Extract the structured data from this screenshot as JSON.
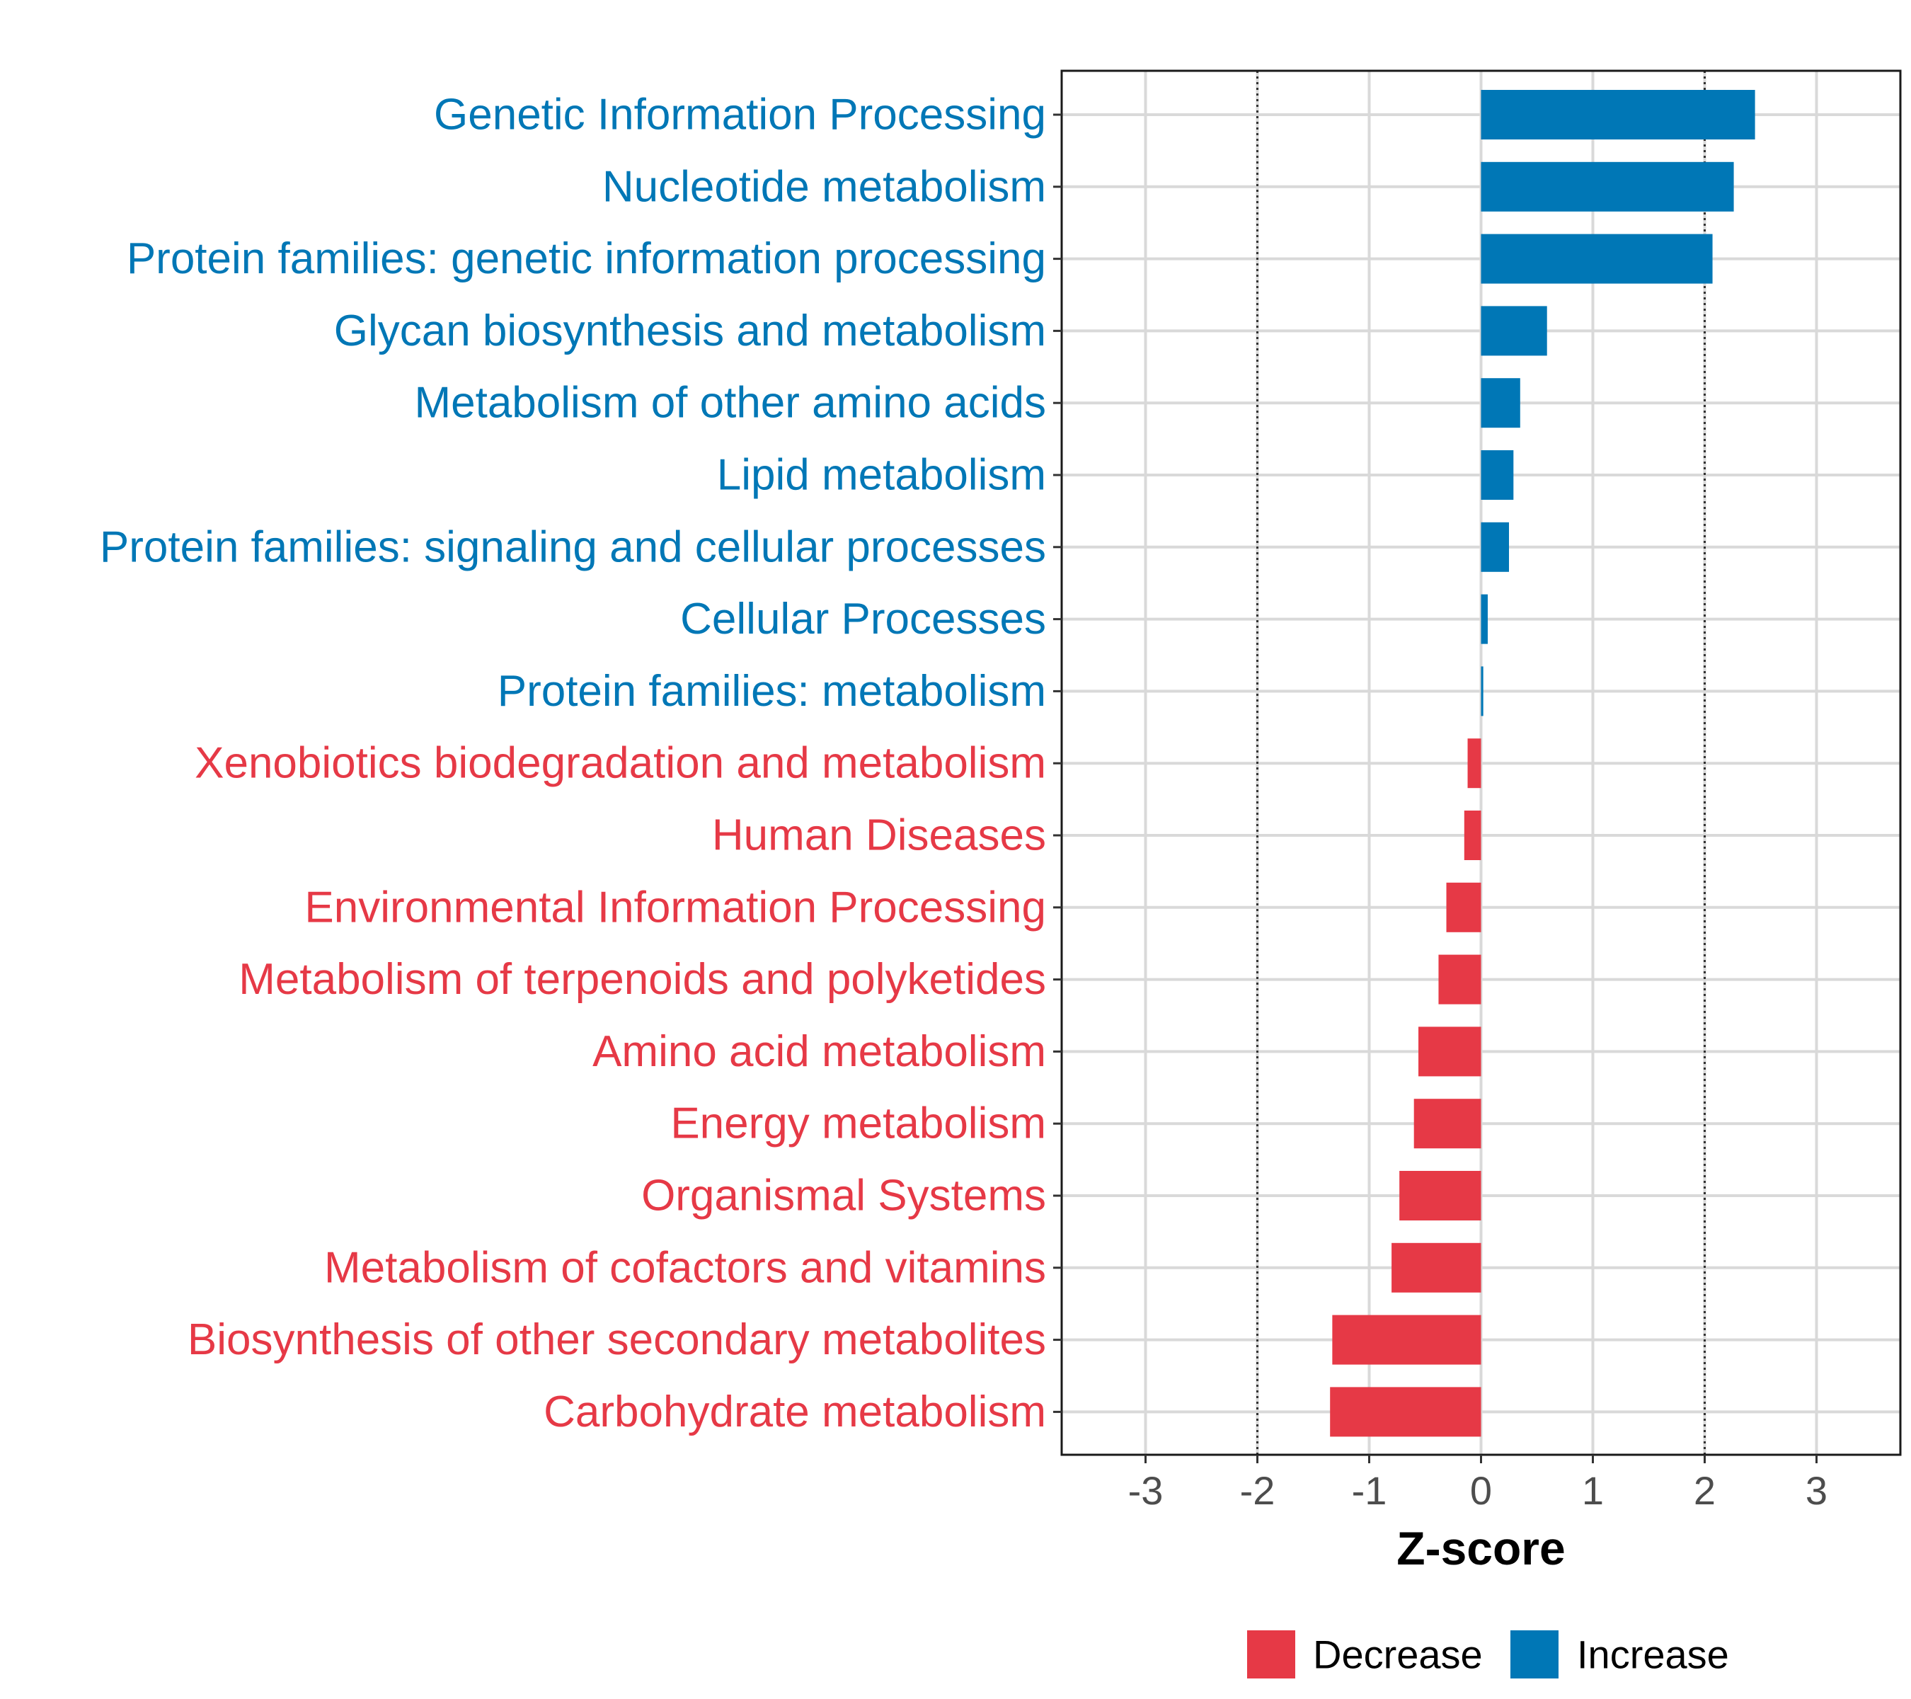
{
  "chart_data": {
    "type": "bar",
    "orientation": "horizontal",
    "title": "",
    "xlabel": "Z-score",
    "ylabel": "",
    "xlim": [
      -3.75,
      3.75
    ],
    "xticks": [
      -3,
      -2,
      -1,
      0,
      1,
      2,
      3
    ],
    "xtick_labels": [
      "-3",
      "-2",
      "-1",
      "0",
      "1",
      "2",
      "3"
    ],
    "reference_lines": [
      -2,
      2
    ],
    "grid": true,
    "categories": [
      "Genetic Information Processing",
      "Nucleotide metabolism",
      "Protein families: genetic information processing",
      "Glycan biosynthesis and metabolism",
      "Metabolism of other amino acids",
      "Lipid metabolism",
      "Protein families: signaling and cellular processes",
      "Cellular Processes",
      "Protein families: metabolism",
      "Xenobiotics biodegradation and metabolism",
      "Human Diseases",
      "Environmental Information Processing",
      "Metabolism of terpenoids and polyketides",
      "Amino acid metabolism",
      "Energy metabolism",
      "Organismal Systems",
      "Metabolism of cofactors and vitamins",
      "Biosynthesis of other secondary metabolites",
      "Carbohydrate metabolism"
    ],
    "values": [
      2.45,
      2.26,
      2.07,
      0.59,
      0.35,
      0.29,
      0.25,
      0.06,
      0.02,
      -0.12,
      -0.15,
      -0.31,
      -0.38,
      -0.56,
      -0.6,
      -0.73,
      -0.8,
      -1.33,
      -1.35
    ],
    "groups": [
      "Increase",
      "Increase",
      "Increase",
      "Increase",
      "Increase",
      "Increase",
      "Increase",
      "Increase",
      "Increase",
      "Decrease",
      "Decrease",
      "Decrease",
      "Decrease",
      "Decrease",
      "Decrease",
      "Decrease",
      "Decrease",
      "Decrease",
      "Decrease"
    ],
    "legend": {
      "position": "bottom",
      "entries": [
        {
          "label": "Decrease",
          "color": "#E63946"
        },
        {
          "label": "Increase",
          "color": "#0077B6"
        }
      ]
    },
    "colors": {
      "Increase": "#0077B6",
      "Decrease": "#E63946"
    }
  }
}
